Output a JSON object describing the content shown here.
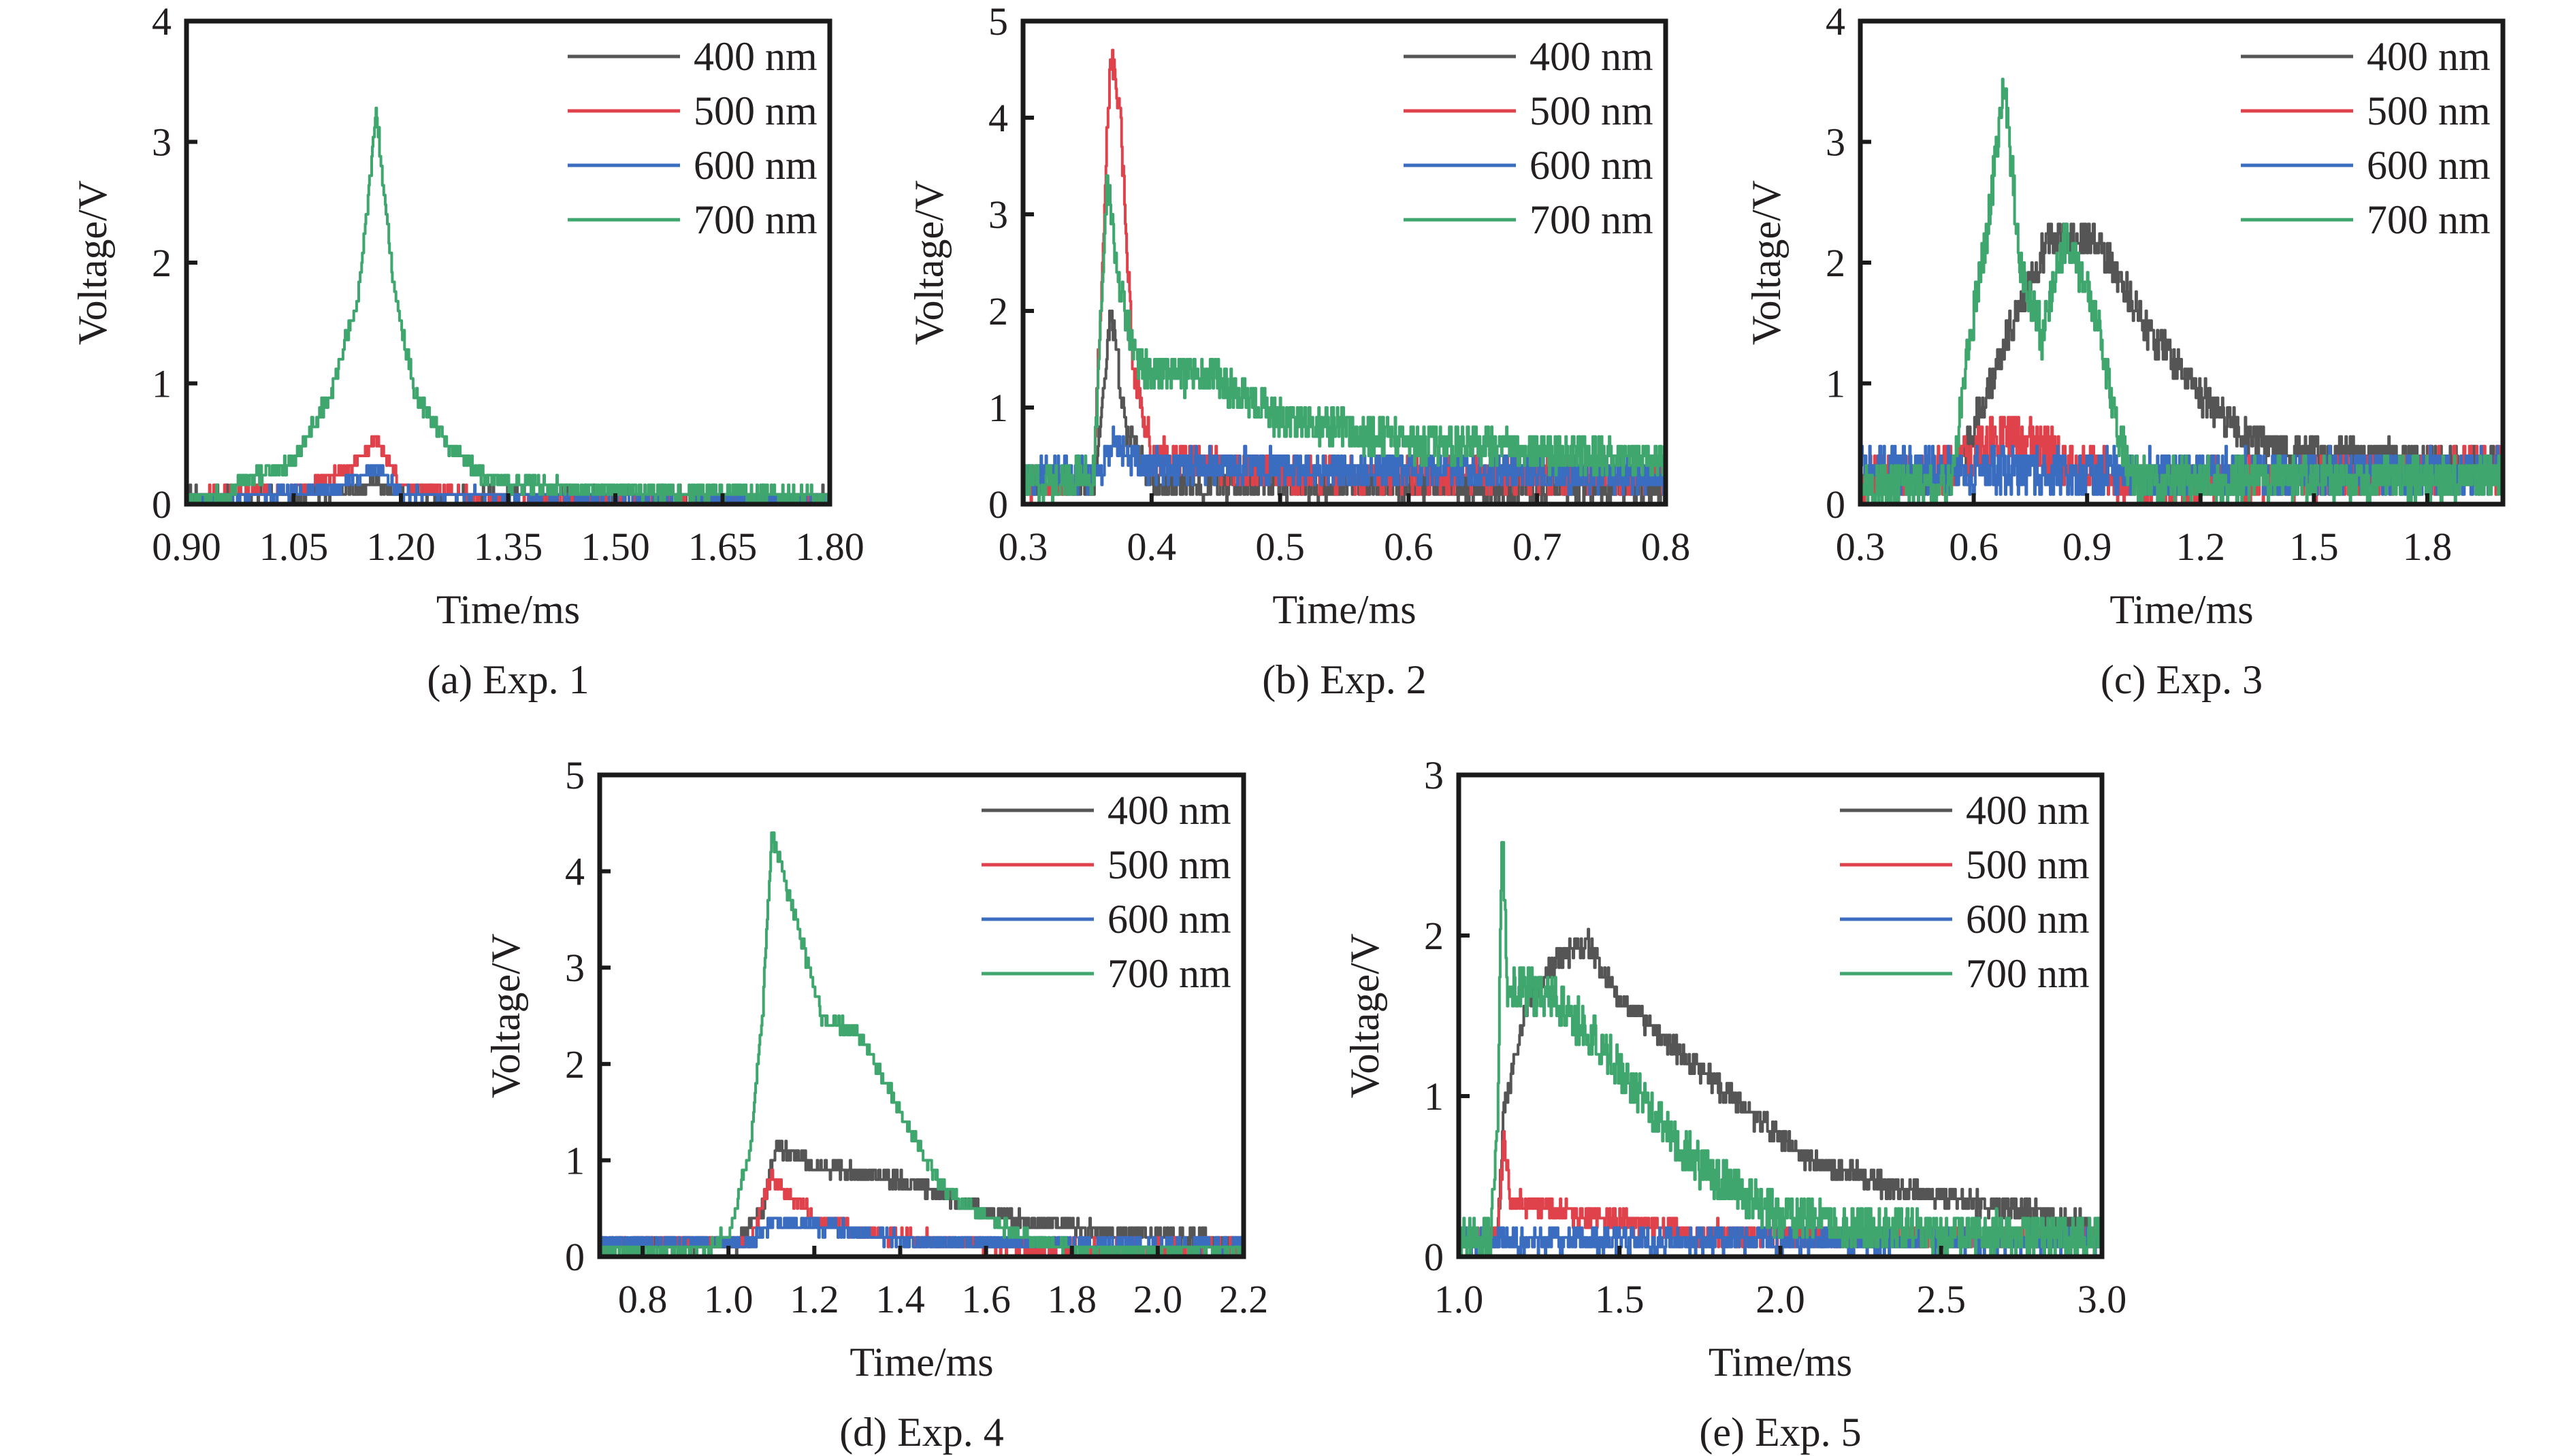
{
  "figure": {
    "legend": {
      "entries": [
        "400 nm",
        "500 nm",
        "600 nm",
        "700 nm"
      ],
      "colors": [
        "#555555",
        "#e0424c",
        "#3a6cc0",
        "#3fa66e"
      ],
      "placement": "top-right"
    }
  },
  "chart_data": [
    {
      "type": "line",
      "id": "a",
      "caption": "(a) Exp. 1",
      "xlabel": "Time/ms",
      "ylabel": "Voltage/V",
      "xlim": [
        0.9,
        1.8
      ],
      "ylim": [
        0,
        4
      ],
      "xticks": [
        "0.90",
        "1.05",
        "1.20",
        "1.35",
        "1.50",
        "1.65",
        "1.80"
      ],
      "yticks": [
        "0",
        "1",
        "2",
        "3",
        "4"
      ],
      "grid": false,
      "legend_position": "top-right",
      "series": [
        {
          "name": "400 nm",
          "noise": 0.05,
          "points": [
            [
              0.9,
              0.08
            ],
            [
              1.1,
              0.08
            ],
            [
              1.16,
              0.18
            ],
            [
              1.2,
              0.08
            ],
            [
              1.8,
              0.07
            ]
          ]
        },
        {
          "name": "500 nm",
          "noise": 0.05,
          "points": [
            [
              0.9,
              0.08
            ],
            [
              1.05,
              0.1
            ],
            [
              1.13,
              0.3
            ],
            [
              1.165,
              0.55
            ],
            [
              1.2,
              0.15
            ],
            [
              1.3,
              0.07
            ],
            [
              1.8,
              0.06
            ]
          ]
        },
        {
          "name": "600 nm",
          "noise": 0.05,
          "points": [
            [
              0.9,
              0.05
            ],
            [
              1.1,
              0.1
            ],
            [
              1.165,
              0.3
            ],
            [
              1.2,
              0.08
            ],
            [
              1.8,
              0.04
            ]
          ]
        },
        {
          "name": "700 nm",
          "noise": 0.07,
          "points": [
            [
              0.9,
              0.05
            ],
            [
              0.96,
              0.06
            ],
            [
              0.97,
              0.18
            ],
            [
              1.05,
              0.35
            ],
            [
              1.1,
              0.9
            ],
            [
              1.14,
              1.7
            ],
            [
              1.165,
              3.25
            ],
            [
              1.19,
              1.8
            ],
            [
              1.22,
              0.9
            ],
            [
              1.27,
              0.45
            ],
            [
              1.32,
              0.2
            ],
            [
              1.45,
              0.12
            ],
            [
              1.8,
              0.06
            ]
          ]
        }
      ]
    },
    {
      "type": "line",
      "id": "b",
      "caption": "(b) Exp. 2",
      "xlabel": "Time/ms",
      "ylabel": "Voltage/V",
      "xlim": [
        0.3,
        0.8
      ],
      "ylim": [
        0,
        5
      ],
      "xticks": [
        "0.3",
        "0.4",
        "0.5",
        "0.6",
        "0.7",
        "0.8"
      ],
      "yticks": [
        "0",
        "1",
        "2",
        "3",
        "4",
        "5"
      ],
      "grid": false,
      "legend_position": "top-right",
      "series": [
        {
          "name": "400 nm",
          "noise": 0.15,
          "points": [
            [
              0.3,
              0.2
            ],
            [
              0.355,
              0.2
            ],
            [
              0.368,
              2.0
            ],
            [
              0.38,
              0.8
            ],
            [
              0.4,
              0.2
            ],
            [
              0.8,
              0.15
            ]
          ]
        },
        {
          "name": "500 nm",
          "noise": 0.18,
          "points": [
            [
              0.3,
              0.2
            ],
            [
              0.355,
              0.3
            ],
            [
              0.368,
              4.7
            ],
            [
              0.375,
              4.1
            ],
            [
              0.385,
              1.5
            ],
            [
              0.4,
              0.5
            ],
            [
              0.5,
              0.3
            ],
            [
              0.8,
              0.3
            ]
          ]
        },
        {
          "name": "600 nm",
          "noise": 0.18,
          "points": [
            [
              0.3,
              0.3
            ],
            [
              0.36,
              0.3
            ],
            [
              0.37,
              0.65
            ],
            [
              0.39,
              0.4
            ],
            [
              0.8,
              0.3
            ]
          ]
        },
        {
          "name": "700 nm",
          "noise": 0.2,
          "points": [
            [
              0.3,
              0.2
            ],
            [
              0.355,
              0.3
            ],
            [
              0.365,
              3.4
            ],
            [
              0.375,
              2.2
            ],
            [
              0.39,
              1.4
            ],
            [
              0.45,
              1.3
            ],
            [
              0.5,
              0.9
            ],
            [
              0.6,
              0.65
            ],
            [
              0.8,
              0.45
            ]
          ]
        }
      ]
    },
    {
      "type": "line",
      "id": "c",
      "caption": "(c) Exp. 3",
      "xlabel": "Time/ms",
      "ylabel": "Voltage/V",
      "xlim": [
        0.3,
        2.0
      ],
      "ylim": [
        0,
        4
      ],
      "xticks": [
        "0.3",
        "0.6",
        "0.9",
        "1.2",
        "1.5",
        "1.8"
      ],
      "yticks": [
        "0",
        "1",
        "2",
        "3",
        "4"
      ],
      "grid": false,
      "legend_position": "top-right",
      "series": [
        {
          "name": "400 nm",
          "noise": 0.15,
          "points": [
            [
              0.3,
              0.2
            ],
            [
              0.55,
              0.2
            ],
            [
              0.7,
              1.5
            ],
            [
              0.8,
              2.2
            ],
            [
              0.92,
              2.2
            ],
            [
              1.05,
              1.5
            ],
            [
              1.2,
              0.9
            ],
            [
              1.35,
              0.5
            ],
            [
              1.6,
              0.4
            ],
            [
              2.0,
              0.3
            ]
          ]
        },
        {
          "name": "500 nm",
          "noise": 0.2,
          "points": [
            [
              0.3,
              0.2
            ],
            [
              0.55,
              0.3
            ],
            [
              0.68,
              0.6
            ],
            [
              0.85,
              0.35
            ],
            [
              1.05,
              0.15
            ],
            [
              2.0,
              0.3
            ]
          ]
        },
        {
          "name": "600 nm",
          "noise": 0.2,
          "points": [
            [
              0.3,
              0.3
            ],
            [
              1.0,
              0.25
            ],
            [
              2.0,
              0.25
            ]
          ]
        },
        {
          "name": "700 nm",
          "noise": 0.18,
          "points": [
            [
              0.3,
              0.15
            ],
            [
              0.54,
              0.15
            ],
            [
              0.58,
              1.2
            ],
            [
              0.64,
              2.4
            ],
            [
              0.68,
              3.55
            ],
            [
              0.72,
              2.0
            ],
            [
              0.78,
              1.4
            ],
            [
              0.84,
              2.2
            ],
            [
              0.92,
              1.6
            ],
            [
              0.98,
              0.6
            ],
            [
              1.02,
              0.2
            ],
            [
              2.0,
              0.2
            ]
          ]
        }
      ]
    },
    {
      "type": "line",
      "id": "d",
      "caption": "(d) Exp. 4",
      "xlabel": "Time/ms",
      "ylabel": "Voltage/V",
      "xlim": [
        0.7,
        2.2
      ],
      "ylim": [
        0,
        5
      ],
      "xticks": [
        "0.8",
        "1.0",
        "1.2",
        "1.4",
        "1.6",
        "1.8",
        "2.0",
        "2.2"
      ],
      "yticks": [
        "0",
        "1",
        "2",
        "3",
        "4",
        "5"
      ],
      "grid": false,
      "legend_position": "top-right",
      "series": [
        {
          "name": "400 nm",
          "noise": 0.08,
          "points": [
            [
              0.7,
              0.12
            ],
            [
              1.02,
              0.12
            ],
            [
              1.08,
              0.5
            ],
            [
              1.11,
              1.15
            ],
            [
              1.2,
              0.95
            ],
            [
              1.4,
              0.8
            ],
            [
              1.55,
              0.55
            ],
            [
              1.7,
              0.35
            ],
            [
              1.9,
              0.25
            ],
            [
              2.2,
              0.15
            ]
          ]
        },
        {
          "name": "500 nm",
          "noise": 0.08,
          "points": [
            [
              0.7,
              0.12
            ],
            [
              1.05,
              0.15
            ],
            [
              1.1,
              0.85
            ],
            [
              1.15,
              0.6
            ],
            [
              1.22,
              0.35
            ],
            [
              1.4,
              0.2
            ],
            [
              1.7,
              0.08
            ],
            [
              2.2,
              0.1
            ]
          ]
        },
        {
          "name": "600 nm",
          "noise": 0.07,
          "points": [
            [
              0.7,
              0.12
            ],
            [
              1.05,
              0.15
            ],
            [
              1.1,
              0.35
            ],
            [
              1.25,
              0.3
            ],
            [
              1.45,
              0.15
            ],
            [
              2.2,
              0.1
            ]
          ]
        },
        {
          "name": "700 nm",
          "noise": 0.07,
          "points": [
            [
              0.7,
              0.05
            ],
            [
              0.95,
              0.08
            ],
            [
              1.0,
              0.25
            ],
            [
              1.05,
              1.1
            ],
            [
              1.08,
              2.6
            ],
            [
              1.1,
              4.4
            ],
            [
              1.15,
              3.6
            ],
            [
              1.22,
              2.45
            ],
            [
              1.3,
              2.35
            ],
            [
              1.4,
              1.5
            ],
            [
              1.5,
              0.7
            ],
            [
              1.6,
              0.4
            ],
            [
              1.72,
              0.15
            ],
            [
              1.8,
              0.08
            ],
            [
              2.2,
              0.08
            ]
          ]
        }
      ]
    },
    {
      "type": "line",
      "id": "e",
      "caption": "(e) Exp. 5",
      "xlabel": "Time/ms",
      "ylabel": "Voltage/V",
      "xlim": [
        1.0,
        3.0
      ],
      "ylim": [
        0,
        3
      ],
      "xticks": [
        "1.0",
        "1.5",
        "2.0",
        "2.5",
        "3.0"
      ],
      "yticks": [
        "0",
        "1",
        "2",
        "3"
      ],
      "grid": false,
      "legend_position": "top-right",
      "series": [
        {
          "name": "400 nm",
          "noise": 0.07,
          "points": [
            [
              1.0,
              0.12
            ],
            [
              1.12,
              0.12
            ],
            [
              1.14,
              0.9
            ],
            [
              1.2,
              1.5
            ],
            [
              1.3,
              1.85
            ],
            [
              1.4,
              1.95
            ],
            [
              1.5,
              1.6
            ],
            [
              1.7,
              1.25
            ],
            [
              1.9,
              0.9
            ],
            [
              2.1,
              0.6
            ],
            [
              2.4,
              0.4
            ],
            [
              2.7,
              0.3
            ],
            [
              3.0,
              0.2
            ]
          ]
        },
        {
          "name": "500 nm",
          "noise": 0.07,
          "points": [
            [
              1.0,
              0.1
            ],
            [
              1.12,
              0.1
            ],
            [
              1.14,
              0.75
            ],
            [
              1.16,
              0.35
            ],
            [
              1.4,
              0.25
            ],
            [
              1.7,
              0.15
            ],
            [
              3.0,
              0.1
            ]
          ]
        },
        {
          "name": "600 nm",
          "noise": 0.08,
          "points": [
            [
              1.0,
              0.1
            ],
            [
              3.0,
              0.1
            ]
          ]
        },
        {
          "name": "700 nm",
          "noise": 0.14,
          "points": [
            [
              1.0,
              0.1
            ],
            [
              1.1,
              0.12
            ],
            [
              1.12,
              0.9
            ],
            [
              1.135,
              2.65
            ],
            [
              1.15,
              1.7
            ],
            [
              1.3,
              1.6
            ],
            [
              1.45,
              1.3
            ],
            [
              1.6,
              0.9
            ],
            [
              1.75,
              0.55
            ],
            [
              1.95,
              0.3
            ],
            [
              2.2,
              0.18
            ],
            [
              3.0,
              0.12
            ]
          ]
        }
      ]
    }
  ]
}
